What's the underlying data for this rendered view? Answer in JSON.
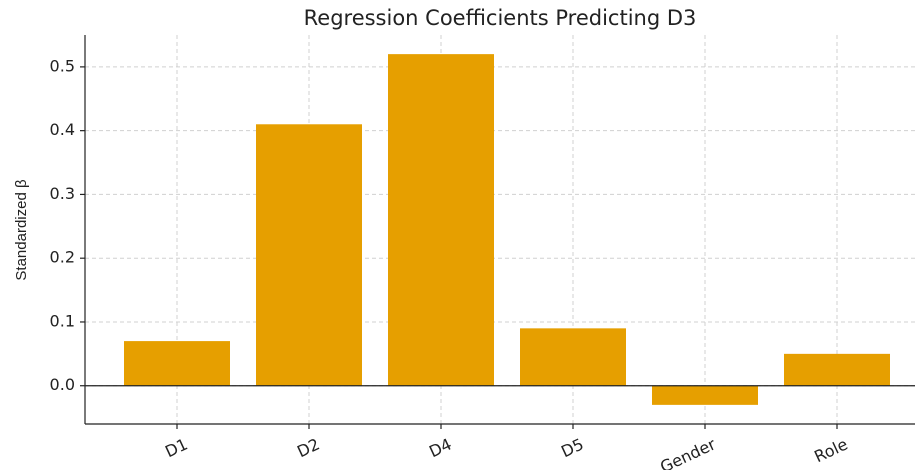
{
  "chart_data": {
    "type": "bar",
    "title": "Regression Coefficients Predicting D3",
    "y_label": "Standardized β",
    "categories": [
      "D1",
      "D2",
      "D4",
      "D5",
      "Gender",
      "Role"
    ],
    "values": [
      0.07,
      0.41,
      0.52,
      0.09,
      -0.03,
      0.05
    ],
    "color": "#e69f00",
    "ylim": [
      -0.06,
      0.55
    ],
    "yticks": [
      {
        "value": 0,
        "label": "0.0"
      },
      0.1,
      0.2,
      0.3,
      0.4,
      0.5
    ],
    "grid": true
  }
}
